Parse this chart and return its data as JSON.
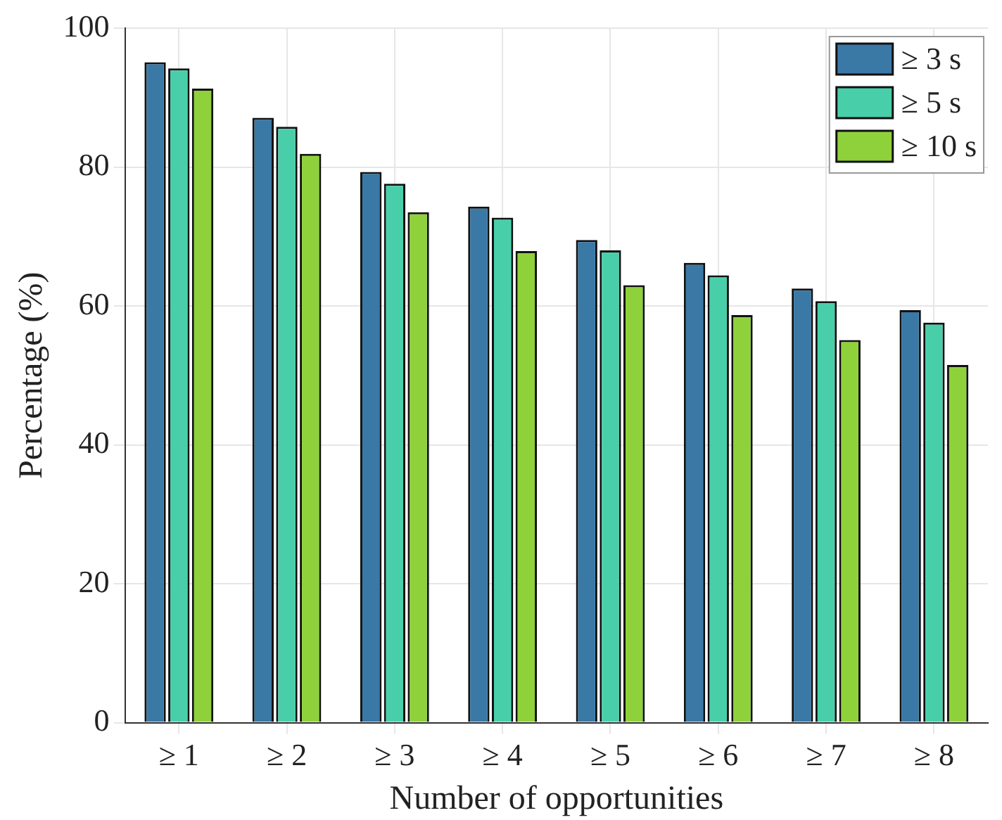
{
  "chart_data": {
    "type": "bar",
    "xlabel": "Number of opportunities",
    "ylabel": "Percentage (%)",
    "categories": [
      "≥ 1",
      "≥ 2",
      "≥ 3",
      "≥ 4",
      "≥ 5",
      "≥ 6",
      "≥ 7",
      "≥ 8"
    ],
    "series": [
      {
        "name": "≥ 3 s",
        "color": "#3a78a6",
        "values": [
          95.1,
          87.1,
          79.3,
          74.3,
          69.5,
          66.2,
          62.5,
          59.4
        ]
      },
      {
        "name": "≥ 5 s",
        "color": "#48cfaa",
        "values": [
          94.2,
          85.8,
          77.6,
          72.7,
          68.0,
          64.4,
          60.7,
          57.6
        ]
      },
      {
        "name": "≥ 10 s",
        "color": "#8fd13a",
        "values": [
          91.3,
          81.9,
          73.5,
          67.9,
          63.0,
          58.7,
          55.1,
          51.5
        ]
      }
    ],
    "ylim": [
      0,
      100
    ],
    "yticks": [
      0,
      20,
      40,
      60,
      80,
      100
    ],
    "grid": true,
    "legend": "top right"
  }
}
